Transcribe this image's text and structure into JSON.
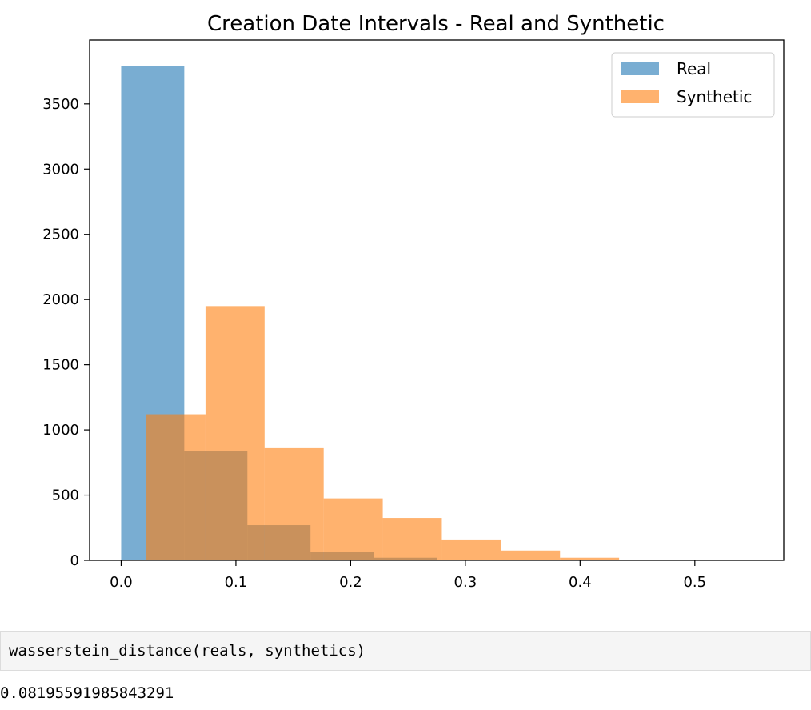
{
  "chart_data": {
    "type": "bar",
    "title": "Creation Date Intervals - Real and Synthetic",
    "xlabel": "",
    "ylabel": "",
    "xlim": [
      -0.0275,
      0.5775
    ],
    "ylim": [
      0,
      3990
    ],
    "xticks": [
      0.0,
      0.1,
      0.2,
      0.3,
      0.4,
      0.5
    ],
    "xtick_labels": [
      "0.0",
      "0.1",
      "0.2",
      "0.3",
      "0.4",
      "0.5"
    ],
    "yticks": [
      0,
      500,
      1000,
      1500,
      2000,
      2500,
      3000,
      3500
    ],
    "ytick_labels": [
      "0",
      "500",
      "1000",
      "1500",
      "2000",
      "2500",
      "3000",
      "3500"
    ],
    "grid": false,
    "legend_position": "top-right",
    "series": [
      {
        "name": "Real",
        "color": "#1f77b4",
        "opacity": 0.6,
        "bin_edges": [
          0.0,
          0.055,
          0.11,
          0.165,
          0.22,
          0.275,
          0.33,
          0.385,
          0.44,
          0.495,
          0.55
        ],
        "values": [
          3790,
          840,
          270,
          65,
          20,
          5,
          0,
          0,
          0,
          2
        ]
      },
      {
        "name": "Synthetic",
        "color": "#ff7f0e",
        "opacity": 0.6,
        "bin_edges": [
          0.022,
          0.0735,
          0.125,
          0.1765,
          0.228,
          0.2795,
          0.331,
          0.3825,
          0.434
        ],
        "values": [
          1120,
          1950,
          860,
          475,
          325,
          160,
          75,
          20
        ]
      }
    ]
  },
  "code_cell": {
    "input": "wasserstein_distance(reals, synthetics)",
    "output": "0.08195591985843291"
  }
}
